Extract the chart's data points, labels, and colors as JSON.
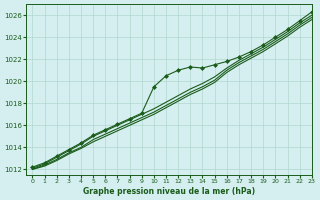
{
  "title": "Graphe pression niveau de la mer (hPa)",
  "bg_color": "#d5eef0",
  "line_color": "#1a5c1a",
  "marker_color": "#1a5c1a",
  "grid_color": "#b0d8d0",
  "text_color": "#1a5c1a",
  "xlim": [
    -0.5,
    23
  ],
  "ylim": [
    1011.5,
    1027
  ],
  "yticks": [
    1012,
    1014,
    1016,
    1018,
    1020,
    1022,
    1024,
    1026
  ],
  "xticks": [
    0,
    1,
    2,
    3,
    4,
    5,
    6,
    7,
    8,
    9,
    10,
    11,
    12,
    13,
    14,
    15,
    16,
    17,
    18,
    19,
    20,
    21,
    22,
    23
  ],
  "series": [
    [
      1012.0,
      1012.4,
      1012.9,
      1013.5,
      1014.0,
      1014.7,
      1015.2,
      1015.7,
      1016.2,
      1016.7,
      1017.2,
      1017.8,
      1018.4,
      1019.0,
      1019.5,
      1020.1,
      1021.0,
      1021.7,
      1022.3,
      1022.9,
      1023.6,
      1024.3,
      1025.1,
      1025.8
    ],
    [
      1012.1,
      1012.5,
      1013.1,
      1013.7,
      1014.3,
      1015.0,
      1015.5,
      1016.0,
      1016.5,
      1017.0,
      1017.5,
      1018.1,
      1018.7,
      1019.3,
      1019.8,
      1020.4,
      1021.2,
      1021.9,
      1022.5,
      1023.1,
      1023.8,
      1024.5,
      1025.3,
      1026.0
    ],
    [
      1012.0,
      1012.3,
      1012.8,
      1013.4,
      1013.9,
      1014.5,
      1015.0,
      1015.5,
      1016.0,
      1016.5,
      1017.0,
      1017.6,
      1018.2,
      1018.8,
      1019.3,
      1019.9,
      1020.8,
      1021.5,
      1022.1,
      1022.7,
      1023.4,
      1024.1,
      1024.9,
      1025.6
    ],
    [
      1012.2,
      1012.6,
      1013.2,
      1013.8,
      1014.4,
      1015.1,
      1015.6,
      1016.1,
      1016.6,
      1017.1,
      1019.5,
      1020.5,
      1021.0,
      1021.3,
      1021.2,
      1021.5,
      1021.8,
      1022.2,
      1022.7,
      1023.3,
      1024.0,
      1024.7,
      1025.5,
      1026.3
    ]
  ],
  "main_series_idx": 3
}
